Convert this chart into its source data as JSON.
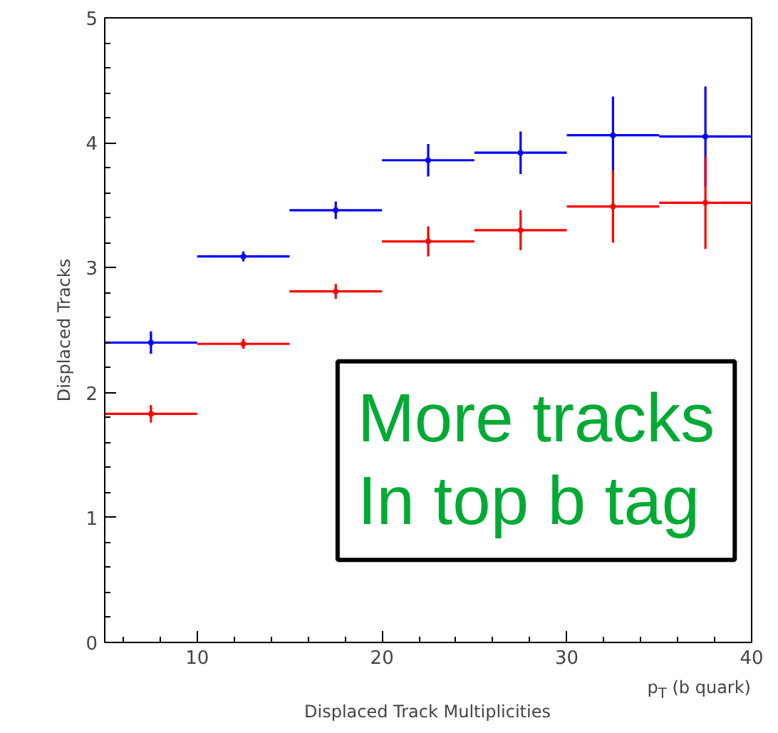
{
  "chart_data": {
    "type": "scatter",
    "xlabel": "Displaced Track Multiplicities",
    "ylabel": "Displaced Tracks",
    "annotations": [
      "p$_{T}$ (b quark)",
      "More tracks\nIn top b tag"
    ],
    "x": [
      7.5,
      12.5,
      17.5,
      22.5,
      27.5,
      32.5,
      37.5
    ],
    "series": [
      {
        "color": "#0000ff",
        "values": [
          2.4,
          3.09,
          3.46,
          3.86,
          3.92,
          4.06,
          4.05
        ],
        "errors": [
          0.09,
          0.04,
          0.07,
          0.13,
          0.17,
          0.31,
          0.4
        ],
        "xerrors": [
          2.5,
          2.5,
          2.5,
          2.5,
          2.5,
          2.5,
          2.5
        ]
      },
      {
        "color": "#ff0000",
        "values": [
          1.83,
          2.39,
          2.81,
          3.21,
          3.3,
          3.49,
          3.52
        ],
        "errors": [
          0.07,
          0.04,
          0.06,
          0.12,
          0.16,
          0.29,
          0.37
        ],
        "xerrors": [
          2.5,
          2.5,
          2.5,
          2.5,
          2.5,
          2.5,
          2.5
        ]
      }
    ],
    "xlim": [
      5,
      40
    ],
    "ylim": [
      0,
      5
    ],
    "xticks": [
      10,
      20,
      30,
      40
    ],
    "yticks": [
      0,
      1,
      2,
      3,
      4,
      5
    ],
    "grid": false
  }
}
